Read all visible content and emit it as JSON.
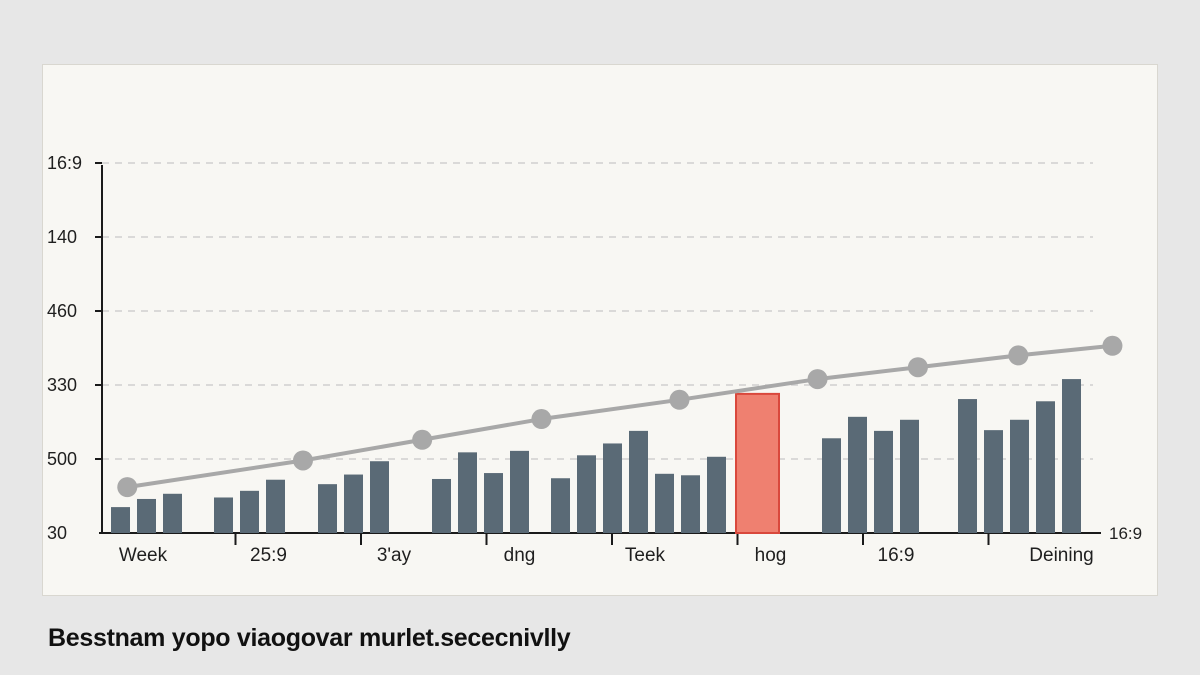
{
  "caption": "Besstnam yopo viaogovar murlet.sececnivlly",
  "chart_data": {
    "type": "bar",
    "title": "",
    "xlabel": "",
    "ylabel": "",
    "y_ticks": [
      "30",
      "500",
      "330",
      "460",
      "140",
      "16:9"
    ],
    "axis_end_label": "16:9",
    "grid": true,
    "legend": "none",
    "categories": [
      "Week",
      "25:9",
      "3'ay",
      "dng",
      "Teek",
      "hog",
      "16:9",
      "Deining"
    ],
    "bar_groups": [
      [
        0.35,
        0.46,
        0.53
      ],
      [
        0.48,
        0.57,
        0.72
      ],
      [
        0.66,
        0.79,
        0.97
      ],
      [
        0.73,
        1.09,
        0.81,
        1.11
      ],
      [
        0.74,
        1.05,
        1.21,
        1.38
      ],
      [
        0.8,
        0.78,
        1.03
      ],
      [
        1.28,
        1.57,
        1.38,
        1.53
      ],
      [
        1.81,
        1.39,
        1.53,
        1.78,
        2.08
      ]
    ],
    "highlight": {
      "group": 5,
      "value": 1.88
    },
    "line_series": {
      "x": [
        0.05,
        1.45,
        2.4,
        3.35,
        4.45,
        5.55,
        6.35,
        7.15,
        7.9
      ],
      "values": [
        0.62,
        0.98,
        1.26,
        1.54,
        1.8,
        2.08,
        2.24,
        2.4,
        2.53
      ]
    },
    "colors": {
      "bar": "#5a6a76",
      "highlight": "#ef8070",
      "highlight_border": "#d9483c",
      "line": "#a8a8a8",
      "grid": "#cfcfcf"
    }
  }
}
